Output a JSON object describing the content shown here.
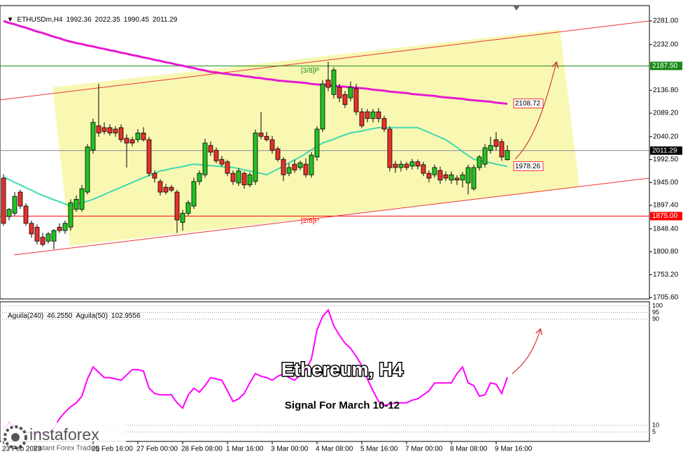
{
  "chart_data": [
    {
      "type": "candlestick",
      "symbol": "ETHUSDm,H4",
      "title": "Ethereum, H4",
      "subtitle": "Signal For March 10-12",
      "categories": [
        "23 Feb 2023",
        null,
        null,
        null,
        null,
        null,
        null,
        null,
        null,
        null,
        null,
        null,
        null,
        null,
        null,
        null,
        "25 Feb 16:00",
        null,
        null,
        null,
        null,
        null,
        null,
        null,
        "27 Feb 00:00",
        null,
        null,
        null,
        null,
        null,
        null,
        null,
        "28 Feb 08:00",
        null,
        null,
        null,
        null,
        null,
        null,
        null,
        "1 Mar 16:00",
        null,
        null,
        null,
        null,
        null,
        null,
        null,
        "3 Mar 00:00",
        null,
        null,
        null,
        null,
        null,
        null,
        null,
        "4 Mar 08:00",
        null,
        null,
        null,
        null,
        null,
        null,
        null,
        "5 Mar 16:00",
        null,
        null,
        null,
        null,
        null,
        null,
        null,
        "7 Mar 00:00",
        null,
        null,
        null,
        null,
        null,
        null,
        null,
        "8 Mar 08:00",
        null,
        null,
        null,
        null,
        null,
        null,
        null,
        "9 Mar 16:00",
        null,
        null
      ],
      "candles": [
        [
          1954,
          1962,
          1855,
          1860
        ],
        [
          1874,
          1892,
          1866,
          1889
        ],
        [
          1881,
          1925,
          1876,
          1916
        ],
        [
          1925,
          1930,
          1890,
          1896
        ],
        [
          1896,
          1902,
          1855,
          1860
        ],
        [
          1860,
          1866,
          1830,
          1838
        ],
        [
          1852,
          1858,
          1816,
          1823
        ],
        [
          1831,
          1840,
          1812,
          1816
        ],
        [
          1823,
          1842,
          1818,
          1838
        ],
        [
          1823,
          1848,
          1806,
          1845
        ],
        [
          1852,
          1860,
          1840,
          1845
        ],
        [
          1845,
          1866,
          1838,
          1860
        ],
        [
          1852,
          1910,
          1845,
          1903
        ],
        [
          1889,
          1918,
          1884,
          1910
        ],
        [
          1889,
          1940,
          1884,
          1932
        ],
        [
          1925,
          2025,
          1920,
          2019
        ],
        [
          2012,
          2078,
          2005,
          2070
        ],
        [
          2063,
          2150,
          2040,
          2048
        ],
        [
          2059,
          2070,
          2045,
          2051
        ],
        [
          2059,
          2066,
          2042,
          2048
        ],
        [
          2056,
          2062,
          2040,
          2048
        ],
        [
          2059,
          2066,
          2028,
          2034
        ],
        [
          2037,
          2045,
          1976,
          2027
        ],
        [
          2034,
          2040,
          2020,
          2027
        ],
        [
          2034,
          2056,
          2028,
          2048
        ],
        [
          2048,
          2060,
          2030,
          2034
        ],
        [
          2034,
          2040,
          1958,
          1964
        ],
        [
          1964,
          1970,
          1945,
          1954
        ],
        [
          1947,
          1952,
          1918,
          1925
        ],
        [
          1935,
          1942,
          1920,
          1925
        ],
        [
          1935,
          1940,
          1925,
          1929
        ],
        [
          1925,
          1930,
          1840,
          1867
        ],
        [
          1862,
          1888,
          1845,
          1881
        ],
        [
          1881,
          1908,
          1876,
          1903
        ],
        [
          1896,
          1955,
          1890,
          1947
        ],
        [
          1947,
          1970,
          1940,
          1964
        ],
        [
          1961,
          2036,
          1955,
          2027
        ],
        [
          2022,
          2030,
          2000,
          2008
        ],
        [
          2012,
          2018,
          1985,
          1990
        ],
        [
          1993,
          2000,
          1978,
          1983
        ],
        [
          1988,
          1992,
          1958,
          1964
        ],
        [
          1964,
          1970,
          1940,
          1947
        ],
        [
          1944,
          1975,
          1938,
          1969
        ],
        [
          1964,
          1968,
          1932,
          1940
        ],
        [
          1940,
          1966,
          1935,
          1961
        ],
        [
          1947,
          2055,
          1940,
          2048
        ],
        [
          2048,
          2092,
          2035,
          2041
        ],
        [
          2041,
          2050,
          2030,
          2034
        ],
        [
          2034,
          2042,
          2005,
          2012
        ],
        [
          2015,
          2020,
          1988,
          1993
        ],
        [
          1993,
          1998,
          1948,
          1961
        ],
        [
          1964,
          1985,
          1958,
          1976
        ],
        [
          1983,
          1992,
          1965,
          1971
        ],
        [
          1976,
          1990,
          1970,
          1986
        ],
        [
          1983,
          1995,
          1955,
          1961
        ],
        [
          1961,
          2008,
          1955,
          2002
        ],
        [
          1998,
          2062,
          1990,
          2056
        ],
        [
          2056,
          2158,
          2050,
          2150
        ],
        [
          2158,
          2196,
          2135,
          2143
        ],
        [
          2128,
          2185,
          2120,
          2179
        ],
        [
          2143,
          2150,
          2112,
          2121
        ],
        [
          2128,
          2135,
          2100,
          2107
        ],
        [
          2121,
          2155,
          2114,
          2143
        ],
        [
          2140,
          2150,
          2085,
          2092
        ],
        [
          2092,
          2100,
          2058,
          2063
        ],
        [
          2092,
          2098,
          2070,
          2078
        ],
        [
          2078,
          2098,
          2070,
          2092
        ],
        [
          2092,
          2100,
          2070,
          2078
        ],
        [
          2078,
          2084,
          2050,
          2056
        ],
        [
          2056,
          2062,
          1968,
          1976
        ],
        [
          1983,
          1990,
          1965,
          1976
        ],
        [
          1976,
          1990,
          1968,
          1983
        ],
        [
          1983,
          1988,
          1970,
          1976
        ],
        [
          1979,
          1994,
          1972,
          1988
        ],
        [
          1988,
          1993,
          1972,
          1979
        ],
        [
          1982,
          1988,
          1958,
          1964
        ],
        [
          1964,
          1970,
          1945,
          1954
        ],
        [
          1961,
          1982,
          1955,
          1976
        ],
        [
          1970,
          1978,
          1942,
          1950
        ],
        [
          1961,
          1968,
          1948,
          1954
        ],
        [
          1950,
          1968,
          1942,
          1961
        ],
        [
          1954,
          1960,
          1940,
          1950
        ],
        [
          1950,
          1967,
          1935,
          1961
        ],
        [
          1944,
          1982,
          1920,
          1976
        ],
        [
          1932,
          1982,
          1928,
          1976
        ],
        [
          1976,
          2002,
          1970,
          1998
        ],
        [
          1983,
          2025,
          1976,
          2017
        ],
        [
          2012,
          2040,
          2005,
          2022
        ],
        [
          2034,
          2050,
          2012,
          2020
        ],
        [
          2030,
          2036,
          1990,
          1998
        ],
        [
          1992.36,
          2022.35,
          1990.45,
          2011.29
        ]
      ],
      "up_color": "#22c322",
      "down_color": "#e8302a",
      "series": [
        {
          "color": "#e619d2",
          "values": [
            2281,
            2277,
            2274,
            2270,
            2267,
            2263,
            2259,
            2256,
            2252,
            2248,
            2245,
            2241,
            2238,
            2235,
            2233,
            2230,
            2228,
            2225,
            2223,
            2220,
            2218,
            2215,
            2213,
            2210,
            2208,
            2205,
            2203,
            2200,
            2198,
            2195,
            2193,
            2190,
            2188,
            2185,
            2183,
            2180,
            2178,
            2175,
            2174,
            2172,
            2171,
            2169,
            2168,
            2166,
            2165,
            2163,
            2162,
            2160,
            2159,
            2157,
            2156,
            2155,
            2154,
            2153,
            2152,
            2150,
            2149,
            2148,
            2147,
            2146,
            2145,
            2144,
            2143,
            2142,
            2141,
            2140,
            2138,
            2137,
            2136,
            2134,
            2133,
            2132,
            2131,
            2129,
            2128,
            2127,
            2126,
            2125,
            2123,
            2122,
            2121,
            2120,
            2119,
            2117,
            2116,
            2115,
            2114,
            2113,
            2111,
            2110,
            2108.72
          ]
        },
        {
          "color": "#3fd9b0",
          "values": [
            1956,
            1951,
            1945,
            1940,
            1934,
            1929,
            1923,
            1918,
            1914,
            1909,
            1905,
            1900,
            1896,
            1899,
            1903,
            1906,
            1910,
            1915,
            1920,
            1925,
            1930,
            1935,
            1940,
            1945,
            1950,
            1955,
            1959,
            1964,
            1969,
            1971,
            1974,
            1976,
            1978,
            1981,
            1983,
            1982,
            1981,
            1980,
            1979,
            1978,
            1977,
            1976,
            1974,
            1971,
            1969,
            1966,
            1964,
            1961,
            1967,
            1973,
            1979,
            1986,
            1992,
            1998,
            2005,
            2013,
            2020,
            2027,
            2031,
            2035,
            2040,
            2044,
            2048,
            2050,
            2052,
            2055,
            2057,
            2059,
            2059,
            2059,
            2059,
            2059,
            2059,
            2059,
            2059,
            2054,
            2049,
            2044,
            2039,
            2034,
            2026,
            2018,
            2009,
            2001,
            1993,
            1991,
            1988,
            1986,
            1983,
            1981,
            1978.26
          ]
        }
      ],
      "levels": [
        {
          "value": 2187.5,
          "label": "2187.50",
          "color": "#1a8a1a",
          "note": "[3/8]P"
        },
        {
          "value": 1875,
          "label": "1875.00",
          "color": "#ff0000",
          "note": "[2/8]P"
        }
      ],
      "ylim": [
        1702.7,
        2313
      ],
      "yticks": [
        {
          "value": 2281,
          "label": "2281.00"
        },
        {
          "value": 2232,
          "label": "2232.00"
        },
        {
          "value": 2136.8,
          "label": "2136.80"
        },
        {
          "value": 2089.2,
          "label": "2089.20"
        },
        {
          "value": 2040.2,
          "label": "2040.20"
        },
        {
          "value": 1992.5,
          "label": "1992.50"
        },
        {
          "value": 1945,
          "label": "1945.00"
        },
        {
          "value": 1897.4,
          "label": "1897.40"
        },
        {
          "value": 1848.4,
          "label": "1848.40"
        },
        {
          "value": 1800.8,
          "label": "1800.80"
        },
        {
          "value": 1753.2,
          "label": "1753.20"
        },
        {
          "value": 1705.6,
          "label": "1705.60"
        }
      ]
    },
    {
      "type": "line",
      "readouts": [
        {
          "name": "Aguila(240)",
          "value": 46.255,
          "label": "46.2550"
        },
        {
          "name": "Aguila(50)",
          "value": 102.9556
        }
      ],
      "series": [
        {
          "color": "#ff00ff",
          "values": [
            7,
            12,
            9,
            7,
            5,
            4,
            4,
            4,
            4,
            8,
            15,
            20,
            24,
            27,
            32,
            45,
            54,
            50,
            46,
            46,
            45,
            44,
            48,
            52,
            52,
            51,
            38,
            34,
            33,
            33,
            33,
            27,
            23,
            33,
            38,
            35,
            40,
            46,
            45,
            44,
            36,
            28,
            30,
            34,
            42,
            49,
            47,
            46,
            44,
            47,
            49,
            46,
            44,
            48,
            52,
            60,
            82,
            92,
            97,
            85,
            78,
            72,
            68,
            62,
            55,
            45,
            36,
            28,
            25,
            26,
            27,
            27,
            27,
            29,
            30,
            33,
            36,
            42,
            42,
            42,
            42,
            49,
            54,
            42,
            40,
            32,
            33,
            42,
            41,
            34,
            46.255
          ]
        }
      ],
      "ylim": [
        0,
        100
      ],
      "yticks": [
        100,
        95,
        90,
        10,
        5
      ]
    }
  ],
  "logo": {
    "name": "instaforex",
    "tagline": "Instant Forex Trading"
  }
}
